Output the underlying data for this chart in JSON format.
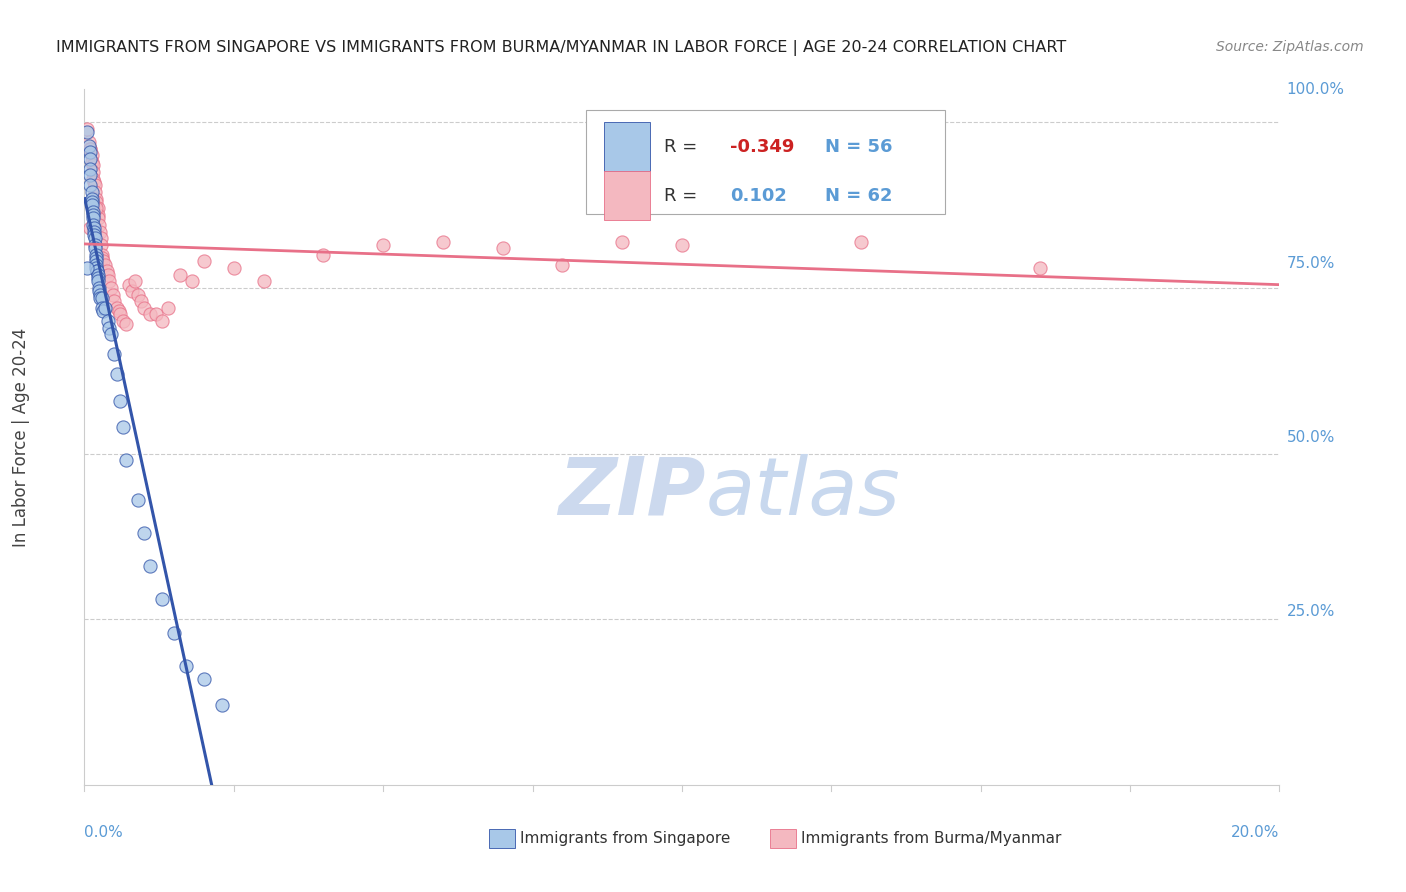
{
  "title": "IMMIGRANTS FROM SINGAPORE VS IMMIGRANTS FROM BURMA/MYANMAR IN LABOR FORCE | AGE 20-24 CORRELATION CHART",
  "source": "Source: ZipAtlas.com",
  "ylabel": "In Labor Force | Age 20-24",
  "legend_label1": "Immigrants from Singapore",
  "legend_label2": "Immigrants from Burma/Myanmar",
  "R1": -0.349,
  "N1": 56,
  "R2": 0.102,
  "N2": 62,
  "color_singapore": "#a8c8e8",
  "color_singapore_line": "#3355aa",
  "color_burma": "#f4b8c0",
  "color_burma_line": "#e87088",
  "watermark_color": "#ccd9ee",
  "axis_color": "#5b9bd5",
  "grid_color": "#cccccc",
  "background_color": "#ffffff",
  "singapore_x": [
    0.0005,
    0.0008,
    0.001,
    0.001,
    0.001,
    0.001,
    0.001,
    0.0012,
    0.0012,
    0.0013,
    0.0013,
    0.0014,
    0.0015,
    0.0015,
    0.0015,
    0.0016,
    0.0016,
    0.0016,
    0.0017,
    0.0018,
    0.0018,
    0.0019,
    0.0019,
    0.002,
    0.002,
    0.002,
    0.0021,
    0.0021,
    0.0022,
    0.0022,
    0.0023,
    0.0024,
    0.0025,
    0.0026,
    0.0027,
    0.003,
    0.003,
    0.0032,
    0.0035,
    0.004,
    0.0042,
    0.0045,
    0.005,
    0.0055,
    0.006,
    0.0065,
    0.007,
    0.009,
    0.01,
    0.011,
    0.013,
    0.015,
    0.017,
    0.02,
    0.023,
    0.0005
  ],
  "singapore_y": [
    0.985,
    0.965,
    0.955,
    0.945,
    0.93,
    0.92,
    0.905,
    0.895,
    0.885,
    0.88,
    0.875,
    0.865,
    0.86,
    0.855,
    0.845,
    0.84,
    0.835,
    0.83,
    0.825,
    0.815,
    0.81,
    0.8,
    0.795,
    0.79,
    0.785,
    0.78,
    0.775,
    0.775,
    0.77,
    0.765,
    0.76,
    0.75,
    0.745,
    0.74,
    0.735,
    0.735,
    0.72,
    0.715,
    0.72,
    0.7,
    0.69,
    0.68,
    0.65,
    0.62,
    0.58,
    0.54,
    0.49,
    0.43,
    0.38,
    0.33,
    0.28,
    0.23,
    0.18,
    0.16,
    0.12,
    0.78
  ],
  "burma_x": [
    0.0005,
    0.0008,
    0.001,
    0.001,
    0.0012,
    0.0013,
    0.0014,
    0.0015,
    0.0015,
    0.0016,
    0.0017,
    0.0018,
    0.002,
    0.002,
    0.0022,
    0.0022,
    0.0023,
    0.0025,
    0.0026,
    0.0028,
    0.0028,
    0.003,
    0.003,
    0.0032,
    0.0035,
    0.0038,
    0.004,
    0.0042,
    0.0045,
    0.0048,
    0.005,
    0.0055,
    0.0058,
    0.006,
    0.0065,
    0.007,
    0.0075,
    0.008,
    0.0085,
    0.009,
    0.0095,
    0.01,
    0.011,
    0.012,
    0.013,
    0.014,
    0.016,
    0.018,
    0.02,
    0.025,
    0.03,
    0.04,
    0.05,
    0.06,
    0.07,
    0.08,
    0.09,
    0.1,
    0.13,
    0.16,
    0.001,
    0.002
  ],
  "burma_y": [
    0.99,
    0.97,
    0.96,
    0.96,
    0.95,
    0.94,
    0.935,
    0.925,
    0.915,
    0.91,
    0.905,
    0.895,
    0.885,
    0.88,
    0.87,
    0.86,
    0.855,
    0.845,
    0.835,
    0.825,
    0.815,
    0.8,
    0.795,
    0.79,
    0.785,
    0.775,
    0.77,
    0.76,
    0.75,
    0.74,
    0.73,
    0.72,
    0.715,
    0.71,
    0.7,
    0.695,
    0.755,
    0.745,
    0.76,
    0.74,
    0.73,
    0.72,
    0.71,
    0.71,
    0.7,
    0.72,
    0.77,
    0.76,
    0.79,
    0.78,
    0.76,
    0.8,
    0.815,
    0.82,
    0.81,
    0.785,
    0.82,
    0.815,
    0.82,
    0.78,
    0.84,
    0.87
  ],
  "xlim": [
    0.0,
    0.2
  ],
  "ylim": [
    0.0,
    1.05
  ]
}
